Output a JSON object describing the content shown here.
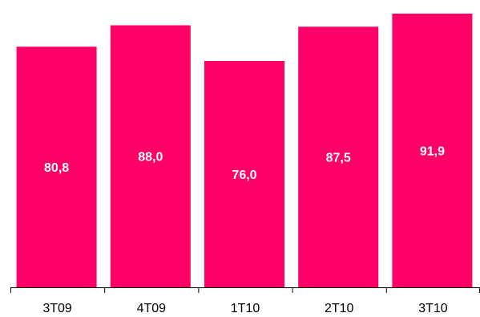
{
  "chart_data": {
    "type": "bar",
    "categories": [
      "3T09",
      "4T09",
      "1T10",
      "2T10",
      "3T10"
    ],
    "values": [
      80.8,
      88.0,
      76.0,
      87.5,
      91.9
    ],
    "value_labels": [
      "80,8",
      "88,0",
      "76,0",
      "87,5",
      "91,9"
    ],
    "title": "",
    "xlabel": "",
    "ylabel": "",
    "ylim": [
      0,
      91.9
    ],
    "grid": false,
    "legend": "none",
    "colors": {
      "bar": "#FF0066",
      "bar_label": "#FFFFFF",
      "axis": "#000000"
    }
  }
}
